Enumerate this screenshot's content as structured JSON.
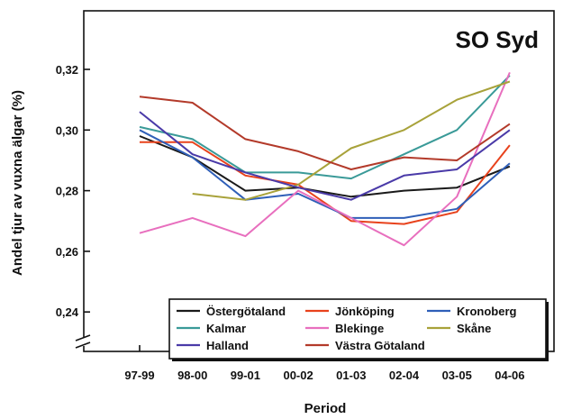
{
  "chart_data": {
    "type": "line",
    "title": "SO Syd",
    "xlabel": "Period",
    "ylabel": "Andel tjur av vuxna älgar (%)",
    "categories": [
      "97-99",
      "98-00",
      "99-01",
      "00-02",
      "01-03",
      "02-04",
      "03-05",
      "04-06"
    ],
    "ylim": [
      0.23,
      0.34
    ],
    "yticks": [
      "0,24",
      "0,26",
      "0,28",
      "0,30",
      "0,32"
    ],
    "ytick_values": [
      0.24,
      0.26,
      0.28,
      0.3,
      0.32
    ],
    "grid": false,
    "legend_position": "bottom",
    "series": [
      {
        "name": "Östergötaland",
        "color": "#1a1a1a",
        "values": [
          0.298,
          0.291,
          0.28,
          0.281,
          0.278,
          0.28,
          0.281,
          0.288
        ]
      },
      {
        "name": "Jönköping",
        "color": "#e8421c",
        "values": [
          0.296,
          0.296,
          0.285,
          0.282,
          0.27,
          0.269,
          0.273,
          0.295
        ]
      },
      {
        "name": "Kronoberg",
        "color": "#2f5fb8",
        "values": [
          0.3,
          0.291,
          0.277,
          0.279,
          0.271,
          0.271,
          0.274,
          0.289
        ]
      },
      {
        "name": "Kalmar",
        "color": "#3a9a98",
        "values": [
          0.301,
          0.297,
          0.286,
          0.286,
          0.284,
          0.292,
          0.3,
          0.318
        ]
      },
      {
        "name": "Blekinge",
        "color": "#e86fbe",
        "values": [
          0.266,
          0.271,
          0.265,
          0.28,
          0.271,
          0.262,
          0.278,
          0.319
        ]
      },
      {
        "name": "Skåne",
        "color": "#a8a23a",
        "values": [
          null,
          0.279,
          0.277,
          0.282,
          0.294,
          0.3,
          0.31,
          0.316
        ]
      },
      {
        "name": "Halland",
        "color": "#4a3aa8",
        "values": [
          0.306,
          0.292,
          0.286,
          0.281,
          0.277,
          0.285,
          0.287,
          0.3
        ]
      },
      {
        "name": "Västra Götaland",
        "color": "#b33a2a",
        "values": [
          0.311,
          0.309,
          0.297,
          0.293,
          0.287,
          0.291,
          0.29,
          0.302
        ]
      }
    ]
  }
}
